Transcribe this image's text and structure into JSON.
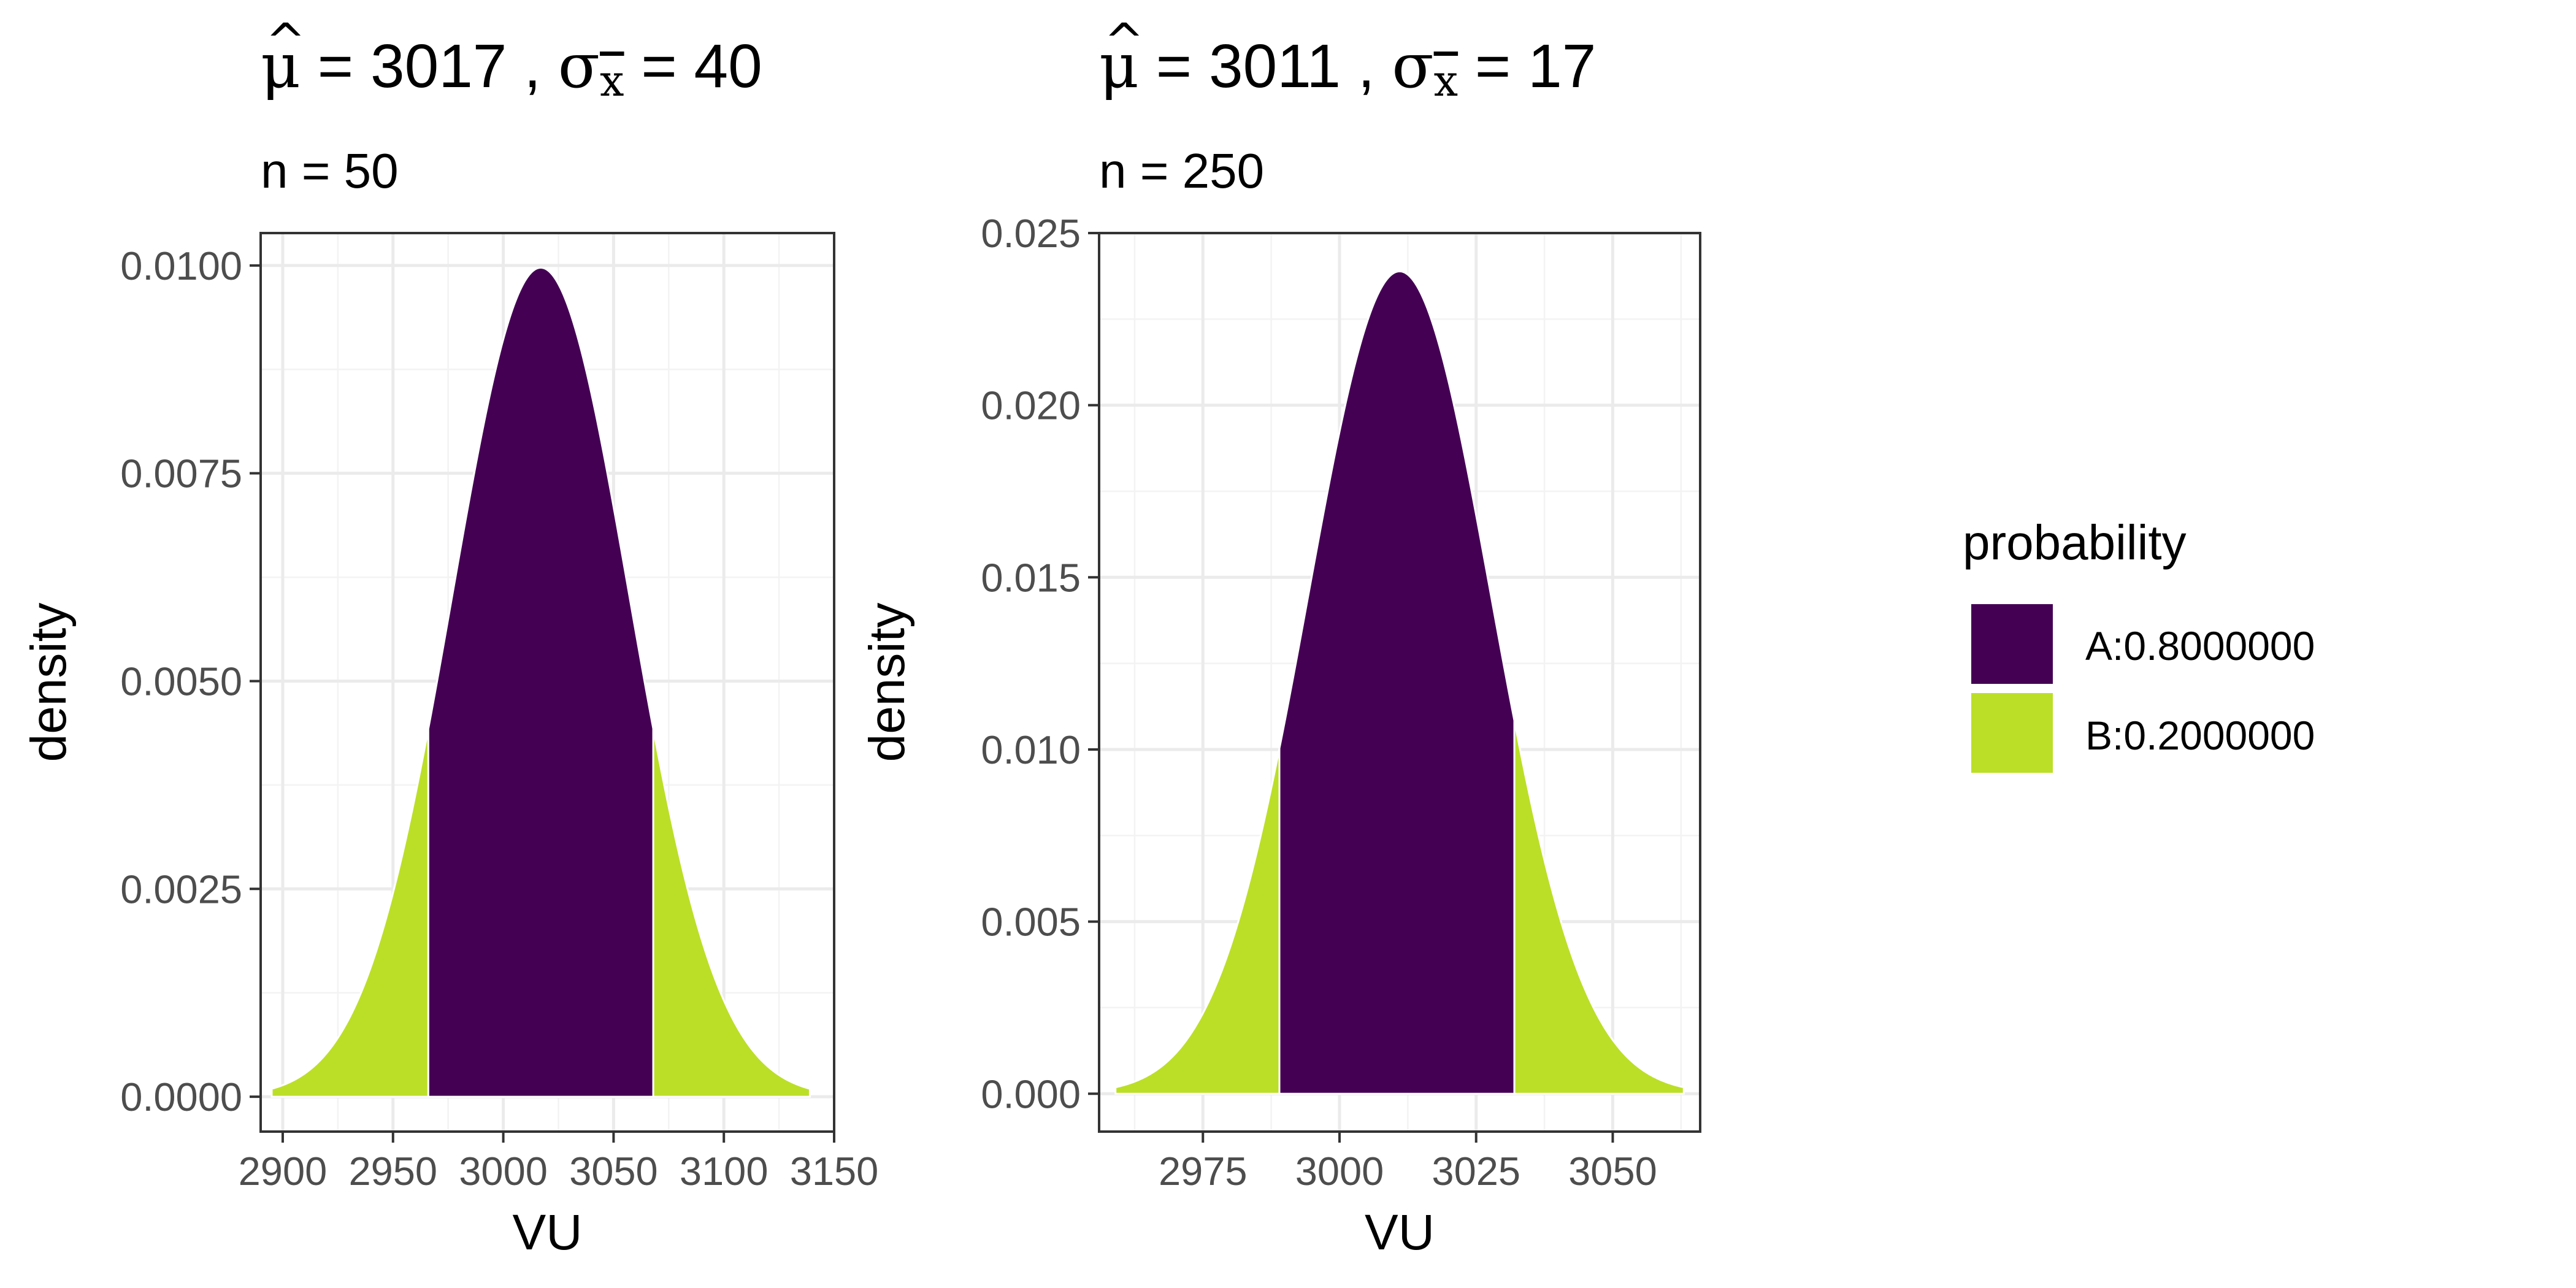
{
  "colors": {
    "region_a": "#440154",
    "region_b": "#BBDF27",
    "panel_border": "#333333",
    "grid_major": "#EBEBEB",
    "grid_minor": "#F3F3F3",
    "tick_text": "#4D4D4D",
    "title_text": "#000000"
  },
  "chart_data": [
    {
      "type": "area",
      "title_parts": {
        "mu_symbol": "μ",
        "hat": "^",
        "eq1": " = 3017 , ",
        "sigma": "σ",
        "subscript": "x",
        "eq2": " = 40"
      },
      "subtitle": "n = 50",
      "xlabel": "VU",
      "ylabel": "density",
      "distribution": {
        "family": "normal",
        "mean": 3017,
        "sd": 40
      },
      "xlim": [
        2890,
        3150
      ],
      "ylim": [
        -0.00042,
        0.01039
      ],
      "x_breaks": [
        2900,
        2950,
        3000,
        3050,
        3100,
        3150
      ],
      "x_break_labels": [
        "2900",
        "2950",
        "3000",
        "3050",
        "3100",
        "3150"
      ],
      "y_breaks": [
        0,
        0.0025,
        0.005,
        0.0075,
        0.01
      ],
      "y_break_labels": [
        "0.0000",
        "0.0025",
        "0.0050",
        "0.0075",
        "0.0100"
      ],
      "curve_range": [
        2895,
        3139
      ],
      "regions": [
        {
          "key": "B",
          "from": 2895,
          "to": 2966
        },
        {
          "key": "A",
          "from": 2966,
          "to": 3068
        },
        {
          "key": "B",
          "from": 3068,
          "to": 3139
        }
      ],
      "grid": true
    },
    {
      "type": "area",
      "title_parts": {
        "mu_symbol": "μ",
        "hat": "^",
        "eq1": " = 3011 , ",
        "sigma": "σ",
        "subscript": "x",
        "eq2": " = 17"
      },
      "subtitle": "n = 250",
      "xlabel": "VU",
      "ylabel": "density",
      "distribution": {
        "family": "normal",
        "mean": 3011,
        "sd": 16.7
      },
      "xlim": [
        2956,
        3066
      ],
      "ylim": [
        -0.0011,
        0.025
      ],
      "x_breaks": [
        2975,
        3000,
        3025,
        3050
      ],
      "x_break_labels": [
        "2975",
        "3000",
        "3025",
        "3050"
      ],
      "y_breaks": [
        0,
        0.005,
        0.01,
        0.015,
        0.02,
        0.025
      ],
      "y_break_labels": [
        "0.000",
        "0.005",
        "0.010",
        "0.015",
        "0.020",
        "0.025"
      ],
      "curve_range": [
        2959,
        3063
      ],
      "regions": [
        {
          "key": "B",
          "from": 2959,
          "to": 2989
        },
        {
          "key": "A",
          "from": 2989,
          "to": 3032
        },
        {
          "key": "B",
          "from": 3032,
          "to": 3063
        }
      ],
      "grid": true
    }
  ],
  "legend": {
    "title": "probability",
    "placement": "right",
    "items": [
      {
        "key": "A",
        "label": "A:0.8000000"
      },
      {
        "key": "B",
        "label": "B:0.2000000"
      }
    ]
  }
}
